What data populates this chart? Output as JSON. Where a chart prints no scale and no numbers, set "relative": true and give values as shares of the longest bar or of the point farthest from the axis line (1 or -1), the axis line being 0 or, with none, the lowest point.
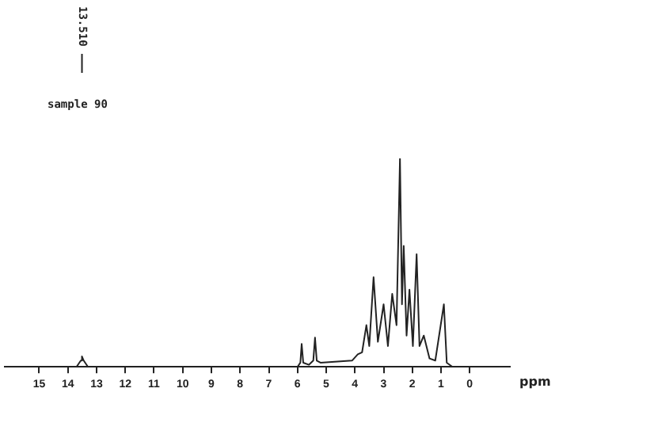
{
  "chart_data": {
    "type": "line",
    "relative": true,
    "xlabel": "ppm",
    "color": "#222222",
    "x": [
      15.5,
      13.7,
      13.55,
      13.51,
      13.45,
      13.3,
      6.0,
      5.9,
      5.855,
      5.8,
      5.6,
      5.45,
      5.39,
      5.33,
      5.2,
      4.1,
      3.9,
      3.75,
      3.6,
      3.5,
      3.35,
      3.2,
      3.0,
      2.85,
      2.7,
      2.55,
      2.43,
      2.36,
      2.3,
      2.2,
      2.1,
      1.98,
      1.85,
      1.75,
      1.6,
      1.4,
      1.2,
      0.9,
      0.8,
      0.6,
      -1.0
    ],
    "values": [
      0,
      0,
      0.03,
      0.05,
      0.03,
      0,
      0,
      0.02,
      0.11,
      0.02,
      0.01,
      0.03,
      0.14,
      0.03,
      0.02,
      0.03,
      0.06,
      0.07,
      0.2,
      0.1,
      0.43,
      0.12,
      0.3,
      0.1,
      0.35,
      0.2,
      1.0,
      0.3,
      0.58,
      0.15,
      0.37,
      0.1,
      0.54,
      0.1,
      0.15,
      0.04,
      0.03,
      0.3,
      0.02,
      0,
      0
    ],
    "xlim": [
      16.2,
      -1.4
    ],
    "xticks": [
      15,
      14,
      13,
      12,
      11,
      10,
      9,
      8,
      7,
      6,
      5,
      4,
      3,
      2,
      1,
      0
    ],
    "annotations": [
      "sample 90",
      {
        "text": "13.510",
        "x": 13.51
      }
    ],
    "grid": false,
    "legend": false,
    "marker": "none"
  }
}
